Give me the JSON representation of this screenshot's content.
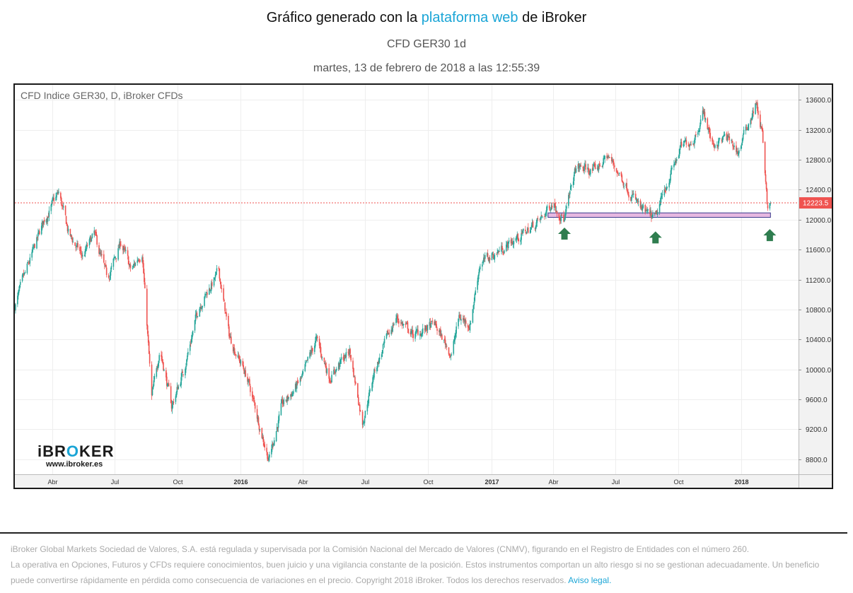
{
  "header": {
    "title_prefix": "Gráfico generado con la ",
    "title_link": "plataforma web",
    "title_suffix": " de iBroker",
    "subtitle": "CFD GER30 1d",
    "datetime": "martes, 13 de febrero de 2018 a las 12:55:39"
  },
  "chart_label": "CFD Indice GER30, D, iBroker CFDs",
  "logo": {
    "name_a": "iBR",
    "name_o": "O",
    "name_b": "KER",
    "url": "www.ibroker.es"
  },
  "colors": {
    "up": "#26a69a",
    "down": "#ef5350",
    "price_line": "#ef5350",
    "support_fill": "#e6b8e0",
    "support_stroke": "#3a3a8c",
    "arrow": "#2f7d4f",
    "grid": "#eeeeee",
    "axis_bg": "#f2f2f2"
  },
  "chart_data": {
    "type": "candlestick",
    "title": "CFD Indice GER30, D, iBroker CFDs",
    "ylim": [
      8600,
      13800
    ],
    "y_ticks": [
      8800,
      9200,
      9600,
      10000,
      10400,
      10800,
      11200,
      11600,
      12000,
      12400,
      12800,
      13200,
      13600
    ],
    "y_tick_labels": [
      "8800.0",
      "9200.0",
      "9600.0",
      "10000.0",
      "10400.0",
      "10800.0",
      "11200.0",
      "11600.0",
      "12000.0",
      "12400.0",
      "12800.0",
      "13200.0",
      "13600.0"
    ],
    "x_ticks": [
      {
        "label": "Abr",
        "date": "2015-04-01",
        "bold": false
      },
      {
        "label": "Jul",
        "date": "2015-07-01",
        "bold": false
      },
      {
        "label": "Oct",
        "date": "2015-10-01",
        "bold": false
      },
      {
        "label": "2016",
        "date": "2016-01-01",
        "bold": true
      },
      {
        "label": "Abr",
        "date": "2016-04-01",
        "bold": false
      },
      {
        "label": "Jul",
        "date": "2016-07-01",
        "bold": false
      },
      {
        "label": "Oct",
        "date": "2016-10-01",
        "bold": false
      },
      {
        "label": "2017",
        "date": "2017-01-01",
        "bold": true
      },
      {
        "label": "Abr",
        "date": "2017-04-01",
        "bold": false
      },
      {
        "label": "Jul",
        "date": "2017-07-01",
        "bold": false
      },
      {
        "label": "Oct",
        "date": "2017-10-01",
        "bold": false
      },
      {
        "label": "2018",
        "date": "2018-01-01",
        "bold": true
      }
    ],
    "x_range": [
      "2015-02-05",
      "2018-03-26"
    ],
    "current_price": 12223.5,
    "current_price_label": "12223.5",
    "support_zone": {
      "low": 12030,
      "high": 12090,
      "start": "2017-03-25",
      "end": "2018-02-13"
    },
    "arrows": [
      {
        "date": "2017-04-18",
        "price": 11950
      },
      {
        "date": "2017-08-29",
        "price": 11900
      },
      {
        "date": "2018-02-12",
        "price": 11930
      }
    ],
    "series": [
      {
        "date": "2015-02-05",
        "close": 10850
      },
      {
        "date": "2015-03-01",
        "close": 11500
      },
      {
        "date": "2015-03-20",
        "close": 12000
      },
      {
        "date": "2015-04-10",
        "close": 12350
      },
      {
        "date": "2015-04-25",
        "close": 11800
      },
      {
        "date": "2015-05-15",
        "close": 11500
      },
      {
        "date": "2015-06-01",
        "close": 11800
      },
      {
        "date": "2015-06-20",
        "close": 11200
      },
      {
        "date": "2015-07-10",
        "close": 11700
      },
      {
        "date": "2015-07-25",
        "close": 11300
      },
      {
        "date": "2015-08-10",
        "close": 11600
      },
      {
        "date": "2015-08-24",
        "close": 9600
      },
      {
        "date": "2015-09-05",
        "close": 10300
      },
      {
        "date": "2015-09-22",
        "close": 9500
      },
      {
        "date": "2015-10-10",
        "close": 10000
      },
      {
        "date": "2015-11-01",
        "close": 10850
      },
      {
        "date": "2015-11-30",
        "close": 11300
      },
      {
        "date": "2015-12-15",
        "close": 10450
      },
      {
        "date": "2016-01-10",
        "close": 9900
      },
      {
        "date": "2016-02-11",
        "close": 8800
      },
      {
        "date": "2016-03-01",
        "close": 9500
      },
      {
        "date": "2016-04-01",
        "close": 9900
      },
      {
        "date": "2016-04-20",
        "close": 10400
      },
      {
        "date": "2016-05-10",
        "close": 9900
      },
      {
        "date": "2016-06-08",
        "close": 10250
      },
      {
        "date": "2016-06-27",
        "close": 9300
      },
      {
        "date": "2016-07-15",
        "close": 10000
      },
      {
        "date": "2016-08-15",
        "close": 10700
      },
      {
        "date": "2016-09-10",
        "close": 10450
      },
      {
        "date": "2016-10-10",
        "close": 10600
      },
      {
        "date": "2016-11-04",
        "close": 10200
      },
      {
        "date": "2016-11-15",
        "close": 10700
      },
      {
        "date": "2016-12-01",
        "close": 10600
      },
      {
        "date": "2016-12-15",
        "close": 11400
      },
      {
        "date": "2017-01-15",
        "close": 11600
      },
      {
        "date": "2017-02-15",
        "close": 11800
      },
      {
        "date": "2017-03-15",
        "close": 12000
      },
      {
        "date": "2017-04-01",
        "close": 12250
      },
      {
        "date": "2017-04-18",
        "close": 12000
      },
      {
        "date": "2017-05-05",
        "close": 12700
      },
      {
        "date": "2017-06-01",
        "close": 12650
      },
      {
        "date": "2017-06-20",
        "close": 12850
      },
      {
        "date": "2017-07-15",
        "close": 12500
      },
      {
        "date": "2017-08-10",
        "close": 12100
      },
      {
        "date": "2017-08-29",
        "close": 12000
      },
      {
        "date": "2017-09-15",
        "close": 12500
      },
      {
        "date": "2017-10-05",
        "close": 12950
      },
      {
        "date": "2017-10-25",
        "close": 13100
      },
      {
        "date": "2017-11-07",
        "close": 13450
      },
      {
        "date": "2017-11-20",
        "close": 13000
      },
      {
        "date": "2017-12-10",
        "close": 13100
      },
      {
        "date": "2017-12-28",
        "close": 12900
      },
      {
        "date": "2018-01-12",
        "close": 13300
      },
      {
        "date": "2018-01-23",
        "close": 13550
      },
      {
        "date": "2018-02-01",
        "close": 13150
      },
      {
        "date": "2018-02-06",
        "close": 12450
      },
      {
        "date": "2018-02-09",
        "close": 12100
      },
      {
        "date": "2018-02-13",
        "close": 12223
      }
    ]
  },
  "footer": {
    "line1": "iBroker Global Markets Sociedad de Valores, S.A. está regulada y supervisada por la Comisión Nacional del Mercado de Valores (CNMV), figurando en el Registro de Entidades con el número 260.",
    "line2": "La operativa en Opciones, Futuros y CFDs requiere conocimientos, buen juicio y una vigilancia constante de la posición. Estos instrumentos comportan un alto riesgo si no se gestionan adecuadamente. Un beneficio puede convertirse rápidamente en pérdida como consecuencia de variaciones en el precio. Copyright 2018 iBroker. Todos los derechos reservados. ",
    "aviso": "Aviso legal."
  }
}
